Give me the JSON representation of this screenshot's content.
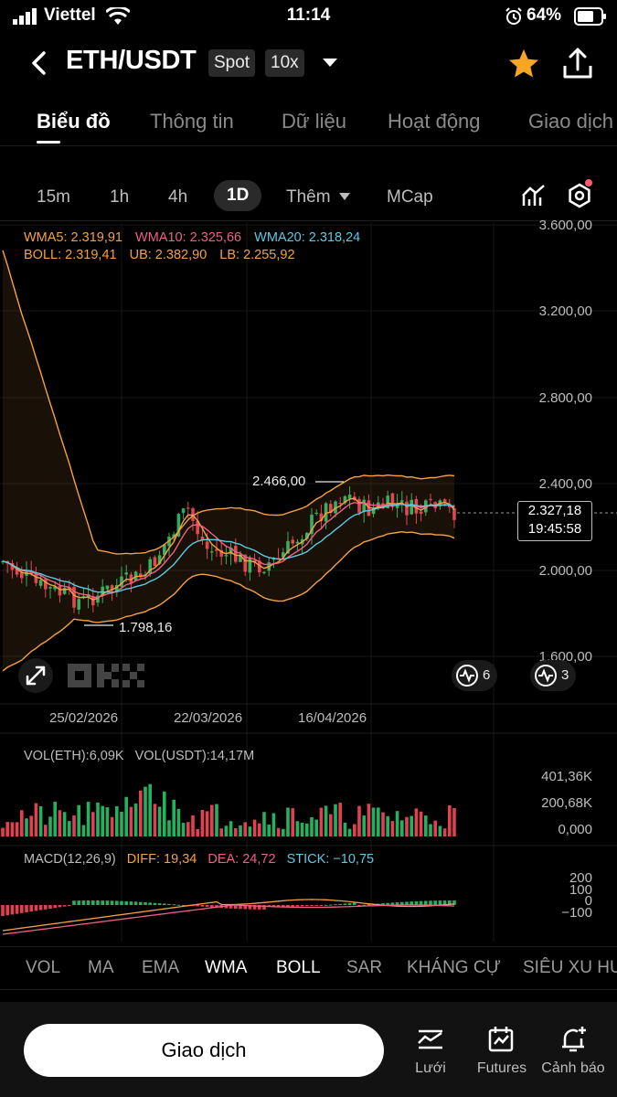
{
  "status": {
    "carrier": "Viettel",
    "time": "11:14",
    "battery": "64%"
  },
  "header": {
    "pair": "ETH/USDT",
    "market_tag": "Spot",
    "leverage_tag": "10x"
  },
  "tabs": [
    "Biểu đồ",
    "Thông tin",
    "Dữ liệu",
    "Hoạt động",
    "Giao dịch"
  ],
  "intervals": {
    "items": [
      "15m",
      "1h",
      "4h",
      "1D"
    ],
    "active": "1D",
    "more": "Thêm",
    "mcap": "MCap"
  },
  "chart": {
    "ma_legend": {
      "wma5": "WMA5: 2.319,91",
      "wma10": "WMA10: 2.325,66",
      "wma20": "WMA20: 2.318,24"
    },
    "boll_legend": {
      "boll": "BOLL: 2.319,41",
      "ub": "UB: 2.382,90",
      "lb": "LB: 2.255,92"
    },
    "price_axis": [
      "3.600,00",
      "3.200,00",
      "2.800,00",
      "2.400,00",
      "2.000,00",
      "1.600,00"
    ],
    "date_axis": [
      "25/02/2026",
      "22/03/2026",
      "16/04/2026"
    ],
    "high_label": "2.466,00",
    "low_label": "1.798,16",
    "current_price": "2.327,18",
    "countdown": "19:45:58",
    "badge_left_count": "6",
    "badge_right_count": "3",
    "colors": {
      "up": "#25b060",
      "down": "#e0404f",
      "wma5": "#f5a142",
      "wma10": "#ef5f8a",
      "wma20": "#5ec9e6",
      "boll": "#f5a142"
    }
  },
  "volume": {
    "label_eth": "VOL(ETH):6,09K",
    "label_usdt": "VOL(USDT):14,17M",
    "axis": [
      "401,36K",
      "200,68K",
      "0,000"
    ]
  },
  "macd": {
    "label": "MACD(12,26,9)",
    "diff": "DIFF: 19,34",
    "dea": "DEA: 24,72",
    "stick": "STICK: −10,75",
    "axis": [
      "200",
      "100",
      "0",
      "−100"
    ]
  },
  "indicators": [
    "VOL",
    "MA",
    "EMA",
    "WMA",
    "BOLL",
    "SAR",
    "KHÁNG CỰ",
    "SIÊU XU HƯỚNG"
  ],
  "indicators_on": [
    "WMA",
    "BOLL"
  ],
  "bottom": {
    "trade_label": "Giao dịch",
    "nav": [
      "Lưới",
      "Futures",
      "Cảnh báo"
    ]
  }
}
